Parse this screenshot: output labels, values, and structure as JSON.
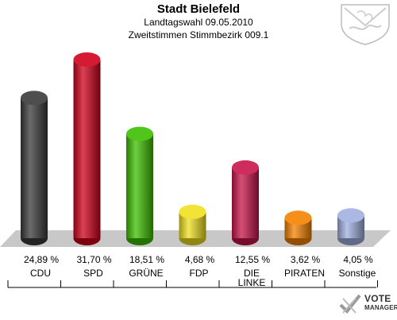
{
  "header": {
    "title": "Stadt Bielefeld",
    "subtitle1": "Landtagswahl 09.05.2010",
    "subtitle2": "Zweitstimmen Stimmbezirk 009.1"
  },
  "logo": {
    "line1": "VOTE",
    "line2": "MANAGER"
  },
  "chart_data": {
    "type": "bar",
    "categories": [
      "CDU",
      "SPD",
      "GRÜNE",
      "FDP",
      "DIE LINKE",
      "PIRATEN",
      "Sonstige"
    ],
    "category_lines": [
      [
        "CDU"
      ],
      [
        "SPD"
      ],
      [
        "GRÜNE"
      ],
      [
        "FDP"
      ],
      [
        "DIE",
        "LINKE"
      ],
      [
        "PIRATEN"
      ],
      [
        "Sonstige"
      ]
    ],
    "values": [
      24.89,
      31.7,
      18.51,
      4.68,
      12.55,
      3.62,
      4.05
    ],
    "value_labels": [
      "24,89 %",
      "31,70 %",
      "18,51 %",
      "4,68 %",
      "12,55 %",
      "3,62 %",
      "4,05 %"
    ],
    "colors": [
      "#3a3a3a",
      "#d0001b",
      "#3cbf00",
      "#f0e020",
      "#c8144a",
      "#f58200",
      "#a0b0e0"
    ],
    "ylim": [
      0,
      31.7
    ],
    "grid": false,
    "legend": "none"
  }
}
